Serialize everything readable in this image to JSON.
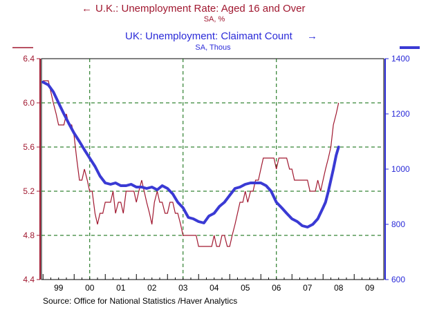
{
  "chart_data": {
    "type": "line",
    "series": [
      {
        "name": "U.K.: Unemployment Rate: Aged 16 and Over",
        "units": "SA, %",
        "axis": "left",
        "color": "#a0172f",
        "x": [
          1999.0,
          1999.08,
          1999.17,
          1999.25,
          1999.33,
          1999.42,
          1999.5,
          1999.58,
          1999.67,
          1999.75,
          1999.83,
          1999.92,
          2000.0,
          2000.08,
          2000.17,
          2000.25,
          2000.33,
          2000.42,
          2000.5,
          2000.58,
          2000.67,
          2000.75,
          2000.83,
          2000.92,
          2001.0,
          2001.08,
          2001.17,
          2001.25,
          2001.33,
          2001.42,
          2001.5,
          2001.58,
          2001.67,
          2001.75,
          2001.83,
          2001.92,
          2002.0,
          2002.08,
          2002.17,
          2002.25,
          2002.33,
          2002.42,
          2002.5,
          2002.58,
          2002.67,
          2002.75,
          2002.83,
          2002.92,
          2003.0,
          2003.08,
          2003.17,
          2003.25,
          2003.33,
          2003.42,
          2003.5,
          2003.58,
          2003.67,
          2003.75,
          2003.83,
          2003.92,
          2004.0,
          2004.08,
          2004.17,
          2004.25,
          2004.33,
          2004.42,
          2004.5,
          2004.58,
          2004.67,
          2004.75,
          2004.83,
          2004.92,
          2005.0,
          2005.08,
          2005.17,
          2005.25,
          2005.33,
          2005.42,
          2005.5,
          2005.58,
          2005.67,
          2005.75,
          2005.83,
          2005.92,
          2006.0,
          2006.08,
          2006.17,
          2006.25,
          2006.33,
          2006.42,
          2006.5,
          2006.58,
          2006.67,
          2006.75,
          2006.83,
          2006.92,
          2007.0,
          2007.08,
          2007.17,
          2007.25,
          2007.33,
          2007.42,
          2007.5,
          2007.58,
          2007.67,
          2007.75,
          2007.83,
          2007.92,
          2008.0,
          2008.08,
          2008.17,
          2008.25,
          2008.33,
          2008.42,
          2008.5
        ],
        "values": [
          6.2,
          6.2,
          6.2,
          6.1,
          6.0,
          5.9,
          5.8,
          5.8,
          5.8,
          5.9,
          5.8,
          5.8,
          5.7,
          5.5,
          5.3,
          5.3,
          5.4,
          5.3,
          5.2,
          5.2,
          5.0,
          4.9,
          5.0,
          5.0,
          5.1,
          5.1,
          5.1,
          5.2,
          5.0,
          5.1,
          5.1,
          5.0,
          5.2,
          5.2,
          5.2,
          5.2,
          5.1,
          5.2,
          5.3,
          5.2,
          5.1,
          5.0,
          4.9,
          5.1,
          5.2,
          5.1,
          5.1,
          5.0,
          5.0,
          5.1,
          5.1,
          5.0,
          5.0,
          4.9,
          4.8,
          4.8,
          4.8,
          4.8,
          4.8,
          4.8,
          4.7,
          4.7,
          4.7,
          4.7,
          4.7,
          4.7,
          4.8,
          4.7,
          4.7,
          4.8,
          4.8,
          4.7,
          4.7,
          4.8,
          4.9,
          5.0,
          5.1,
          5.1,
          5.2,
          5.1,
          5.2,
          5.2,
          5.3,
          5.3,
          5.4,
          5.5,
          5.5,
          5.5,
          5.5,
          5.5,
          5.4,
          5.5,
          5.5,
          5.5,
          5.5,
          5.4,
          5.4,
          5.3,
          5.3,
          5.3,
          5.3,
          5.3,
          5.3,
          5.2,
          5.2,
          5.2,
          5.3,
          5.2,
          5.3,
          5.4,
          5.5,
          5.6,
          5.8,
          5.9,
          6.0
        ]
      },
      {
        "name": "UK: Unemployment: Claimant Count",
        "units": "SA, Thous",
        "axis": "right",
        "color": "#3a3ad4",
        "x": [
          1999.0,
          1999.17,
          1999.33,
          1999.5,
          1999.67,
          1999.83,
          2000.0,
          2000.17,
          2000.33,
          2000.5,
          2000.67,
          2000.83,
          2001.0,
          2001.17,
          2001.33,
          2001.5,
          2001.67,
          2001.83,
          2002.0,
          2002.17,
          2002.33,
          2002.5,
          2002.67,
          2002.83,
          2003.0,
          2003.17,
          2003.33,
          2003.5,
          2003.67,
          2003.83,
          2004.0,
          2004.17,
          2004.33,
          2004.5,
          2004.67,
          2004.83,
          2005.0,
          2005.17,
          2005.33,
          2005.5,
          2005.67,
          2005.83,
          2006.0,
          2006.17,
          2006.33,
          2006.5,
          2006.67,
          2006.83,
          2007.0,
          2007.17,
          2007.33,
          2007.5,
          2007.67,
          2007.83,
          2008.0,
          2008.08,
          2008.17,
          2008.25,
          2008.33,
          2008.42,
          2008.5
        ],
        "values": [
          1315,
          1305,
          1280,
          1240,
          1200,
          1165,
          1130,
          1100,
          1070,
          1040,
          1010,
          975,
          950,
          945,
          950,
          940,
          940,
          945,
          935,
          935,
          930,
          935,
          925,
          940,
          930,
          910,
          880,
          860,
          825,
          820,
          810,
          805,
          830,
          840,
          865,
          880,
          905,
          930,
          935,
          945,
          950,
          950,
          950,
          940,
          920,
          880,
          860,
          840,
          820,
          810,
          795,
          790,
          800,
          820,
          860,
          880,
          920,
          960,
          1000,
          1050,
          1080
        ]
      }
    ],
    "x_tick_labels": [
      "99",
      "00",
      "01",
      "02",
      "03",
      "04",
      "05",
      "06",
      "07",
      "08",
      "09"
    ],
    "x_tick_values": [
      1999.5,
      2000.5,
      2001.5,
      2002.5,
      2003.5,
      2004.5,
      2005.5,
      2006.5,
      2007.5,
      2008.5,
      2009.5
    ],
    "xlim": [
      1998.95,
      2009.95
    ],
    "y_left_ticks": [
      "6.4",
      "6.0",
      "5.6",
      "5.2",
      "4.8",
      "4.4"
    ],
    "y_left_lim": [
      4.4,
      6.4
    ],
    "y_right_ticks": [
      "1400",
      "1200",
      "1000",
      "800",
      "600"
    ],
    "y_right_lim": [
      600,
      1400
    ],
    "gridlines": "dashed green",
    "grid_x_values": [
      2000.5,
      2003.5,
      2006.5
    ],
    "grid_y_values": [
      6.0,
      5.6,
      5.2,
      4.8
    ]
  },
  "titles": {
    "left_arrow": "←",
    "left_title": "U.K.: Unemployment Rate: Aged 16 and Over",
    "left_units": "SA, %",
    "right_title": "UK: Unemployment: Claimant Count",
    "right_arrow": "→",
    "right_units": "SA, Thous"
  },
  "source": "Source:  Office for National Statistics /Haver Analytics",
  "colors": {
    "red": "#a0172f",
    "blue": "#2a2ad8",
    "grid": "#006400"
  }
}
